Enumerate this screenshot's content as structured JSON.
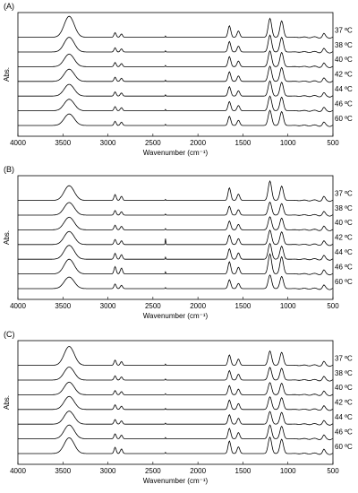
{
  "chart_data": [
    {
      "type": "line",
      "panel_label": "(A)",
      "xlabel": "Wavenumber (cm⁻¹)",
      "ylabel": "Abs.",
      "xlim": [
        4000,
        500
      ],
      "x_reversed": true,
      "xticks": [
        4000,
        3500,
        3000,
        2500,
        2000,
        1500,
        1000,
        500
      ],
      "grid": false,
      "series": [
        {
          "name": "37 ºC",
          "peaks": [
            [
              3430,
              1.0
            ],
            [
              2920,
              0.22
            ],
            [
              2850,
              0.16
            ],
            [
              2360,
              0.06
            ],
            [
              1650,
              0.55
            ],
            [
              1550,
              0.3
            ],
            [
              1200,
              0.9
            ],
            [
              1070,
              0.78
            ],
            [
              600,
              0.15
            ]
          ]
        },
        {
          "name": "38 ºC",
          "peaks": [
            [
              3430,
              0.7
            ],
            [
              2920,
              0.2
            ],
            [
              2850,
              0.15
            ],
            [
              2360,
              0.06
            ],
            [
              1650,
              0.5
            ],
            [
              1550,
              0.28
            ],
            [
              1200,
              0.8
            ],
            [
              1070,
              0.7
            ],
            [
              600,
              0.14
            ]
          ]
        },
        {
          "name": "40 ºC",
          "peaks": [
            [
              3430,
              0.6
            ],
            [
              2920,
              0.2
            ],
            [
              2850,
              0.15
            ],
            [
              2360,
              0.06
            ],
            [
              1650,
              0.48
            ],
            [
              1550,
              0.27
            ],
            [
              1200,
              0.75
            ],
            [
              1070,
              0.68
            ],
            [
              600,
              0.14
            ]
          ]
        },
        {
          "name": "42 ºC",
          "peaks": [
            [
              3430,
              0.58
            ],
            [
              2920,
              0.2
            ],
            [
              2850,
              0.15
            ],
            [
              2360,
              0.06
            ],
            [
              1650,
              0.46
            ],
            [
              1550,
              0.26
            ],
            [
              1200,
              0.72
            ],
            [
              1070,
              0.66
            ],
            [
              600,
              0.13
            ]
          ]
        },
        {
          "name": "44 ºC",
          "peaks": [
            [
              3430,
              0.56
            ],
            [
              2920,
              0.2
            ],
            [
              2850,
              0.15
            ],
            [
              2360,
              0.06
            ],
            [
              1650,
              0.45
            ],
            [
              1550,
              0.25
            ],
            [
              1200,
              0.72
            ],
            [
              1070,
              0.66
            ],
            [
              600,
              0.13
            ]
          ]
        },
        {
          "name": "46 ºC",
          "peaks": [
            [
              3430,
              0.55
            ],
            [
              2920,
              0.2
            ],
            [
              2850,
              0.15
            ],
            [
              2360,
              0.06
            ],
            [
              1650,
              0.44
            ],
            [
              1550,
              0.25
            ],
            [
              1200,
              0.7
            ],
            [
              1070,
              0.65
            ],
            [
              600,
              0.13
            ]
          ]
        },
        {
          "name": "60 ºC",
          "peaks": [
            [
              3430,
              0.55
            ],
            [
              2920,
              0.2
            ],
            [
              2850,
              0.16
            ],
            [
              2360,
              0.06
            ],
            [
              1650,
              0.44
            ],
            [
              1550,
              0.25
            ],
            [
              1200,
              0.72
            ],
            [
              1070,
              0.66
            ],
            [
              600,
              0.13
            ]
          ]
        }
      ]
    },
    {
      "type": "line",
      "panel_label": "(B)",
      "xlabel": "Wavenumber (cm⁻¹)",
      "ylabel": "Abs.",
      "xlim": [
        4000,
        500
      ],
      "x_reversed": true,
      "xticks": [
        4000,
        3500,
        3000,
        2500,
        2000,
        1500,
        1000,
        500
      ],
      "grid": false,
      "series": [
        {
          "name": "37 ºC",
          "peaks": [
            [
              3430,
              0.7
            ],
            [
              2920,
              0.28
            ],
            [
              2850,
              0.2
            ],
            [
              2360,
              0.05
            ],
            [
              1650,
              0.6
            ],
            [
              1550,
              0.3
            ],
            [
              1200,
              0.92
            ],
            [
              1070,
              0.68
            ],
            [
              600,
              0.16
            ]
          ]
        },
        {
          "name": "38 ºC",
          "peaks": [
            [
              3430,
              0.6
            ],
            [
              2920,
              0.22
            ],
            [
              2850,
              0.16
            ],
            [
              2360,
              0.05
            ],
            [
              1650,
              0.42
            ],
            [
              1550,
              0.26
            ],
            [
              1200,
              0.62
            ],
            [
              1070,
              0.55
            ],
            [
              600,
              0.14
            ]
          ]
        },
        {
          "name": "40 ºC",
          "peaks": [
            [
              3430,
              0.6
            ],
            [
              2920,
              0.22
            ],
            [
              2850,
              0.17
            ],
            [
              2360,
              0.06
            ],
            [
              1650,
              0.42
            ],
            [
              1550,
              0.26
            ],
            [
              1200,
              0.62
            ],
            [
              1070,
              0.56
            ],
            [
              600,
              0.14
            ]
          ]
        },
        {
          "name": "42 ºC",
          "peaks": [
            [
              3430,
              0.62
            ],
            [
              2920,
              0.24
            ],
            [
              2850,
              0.18
            ],
            [
              2360,
              0.28
            ],
            [
              1650,
              0.45
            ],
            [
              1550,
              0.28
            ],
            [
              1200,
              0.68
            ],
            [
              1070,
              0.6
            ],
            [
              600,
              0.14
            ]
          ]
        },
        {
          "name": "44 ºC",
          "peaks": [
            [
              3430,
              0.66
            ],
            [
              2920,
              0.28
            ],
            [
              2850,
              0.22
            ],
            [
              2360,
              0.1
            ],
            [
              1650,
              0.5
            ],
            [
              1550,
              0.3
            ],
            [
              1200,
              0.75
            ],
            [
              1070,
              0.62
            ],
            [
              600,
              0.15
            ]
          ]
        },
        {
          "name": "46 ºC",
          "peaks": [
            [
              3430,
              0.7
            ],
            [
              2920,
              0.35
            ],
            [
              2850,
              0.28
            ],
            [
              2360,
              0.1
            ],
            [
              1650,
              0.58
            ],
            [
              1550,
              0.32
            ],
            [
              1200,
              0.95
            ],
            [
              1070,
              0.82
            ],
            [
              600,
              0.16
            ]
          ]
        },
        {
          "name": "60 ºC",
          "peaks": [
            [
              3430,
              0.55
            ],
            [
              2920,
              0.22
            ],
            [
              2850,
              0.16
            ],
            [
              2360,
              0.05
            ],
            [
              1650,
              0.42
            ],
            [
              1550,
              0.25
            ],
            [
              1200,
              0.65
            ],
            [
              1070,
              0.58
            ],
            [
              600,
              0.14
            ]
          ]
        }
      ]
    },
    {
      "type": "line",
      "panel_label": "(C)",
      "xlabel": "Wavenumber (cm⁻¹)",
      "ylabel": "Abs.",
      "xlim": [
        4000,
        500
      ],
      "x_reversed": true,
      "xticks": [
        4000,
        3500,
        3000,
        2500,
        2000,
        1500,
        1000,
        500
      ],
      "grid": false,
      "series": [
        {
          "name": "37 ºC",
          "peaks": [
            [
              3430,
              0.9
            ],
            [
              2920,
              0.25
            ],
            [
              2850,
              0.18
            ],
            [
              2360,
              0.06
            ],
            [
              1650,
              0.5
            ],
            [
              1550,
              0.3
            ],
            [
              1200,
              0.68
            ],
            [
              1070,
              0.62
            ],
            [
              600,
              0.16
            ]
          ]
        },
        {
          "name": "38 ºC",
          "peaks": [
            [
              3430,
              0.62
            ],
            [
              2920,
              0.2
            ],
            [
              2850,
              0.15
            ],
            [
              2360,
              0.05
            ],
            [
              1650,
              0.45
            ],
            [
              1550,
              0.28
            ],
            [
              1200,
              0.6
            ],
            [
              1070,
              0.56
            ],
            [
              600,
              0.14
            ]
          ]
        },
        {
          "name": "40 ºC",
          "peaks": [
            [
              3430,
              0.6
            ],
            [
              2920,
              0.2
            ],
            [
              2850,
              0.15
            ],
            [
              2360,
              0.05
            ],
            [
              1650,
              0.44
            ],
            [
              1550,
              0.27
            ],
            [
              1200,
              0.58
            ],
            [
              1070,
              0.55
            ],
            [
              600,
              0.14
            ]
          ]
        },
        {
          "name": "42 ºC",
          "peaks": [
            [
              3430,
              0.62
            ],
            [
              2920,
              0.22
            ],
            [
              2850,
              0.16
            ],
            [
              2360,
              0.05
            ],
            [
              1650,
              0.45
            ],
            [
              1550,
              0.28
            ],
            [
              1200,
              0.6
            ],
            [
              1070,
              0.56
            ],
            [
              600,
              0.14
            ]
          ]
        },
        {
          "name": "44 ºC",
          "peaks": [
            [
              3430,
              0.62
            ],
            [
              2920,
              0.22
            ],
            [
              2850,
              0.16
            ],
            [
              2360,
              0.05
            ],
            [
              1650,
              0.45
            ],
            [
              1550,
              0.28
            ],
            [
              1200,
              0.6
            ],
            [
              1070,
              0.56
            ],
            [
              600,
              0.14
            ]
          ]
        },
        {
          "name": "46 ºC",
          "peaks": [
            [
              3430,
              0.66
            ],
            [
              2920,
              0.24
            ],
            [
              2850,
              0.18
            ],
            [
              2360,
              0.06
            ],
            [
              1650,
              0.5
            ],
            [
              1550,
              0.3
            ],
            [
              1200,
              0.66
            ],
            [
              1070,
              0.6
            ],
            [
              600,
              0.15
            ]
          ]
        },
        {
          "name": "60 ºC",
          "peaks": [
            [
              3430,
              0.75
            ],
            [
              2920,
              0.3
            ],
            [
              2850,
              0.22
            ],
            [
              2360,
              0.06
            ],
            [
              1650,
              0.6
            ],
            [
              1550,
              0.32
            ],
            [
              1200,
              0.78
            ],
            [
              1070,
              0.68
            ],
            [
              600,
              0.17
            ]
          ]
        }
      ]
    }
  ]
}
